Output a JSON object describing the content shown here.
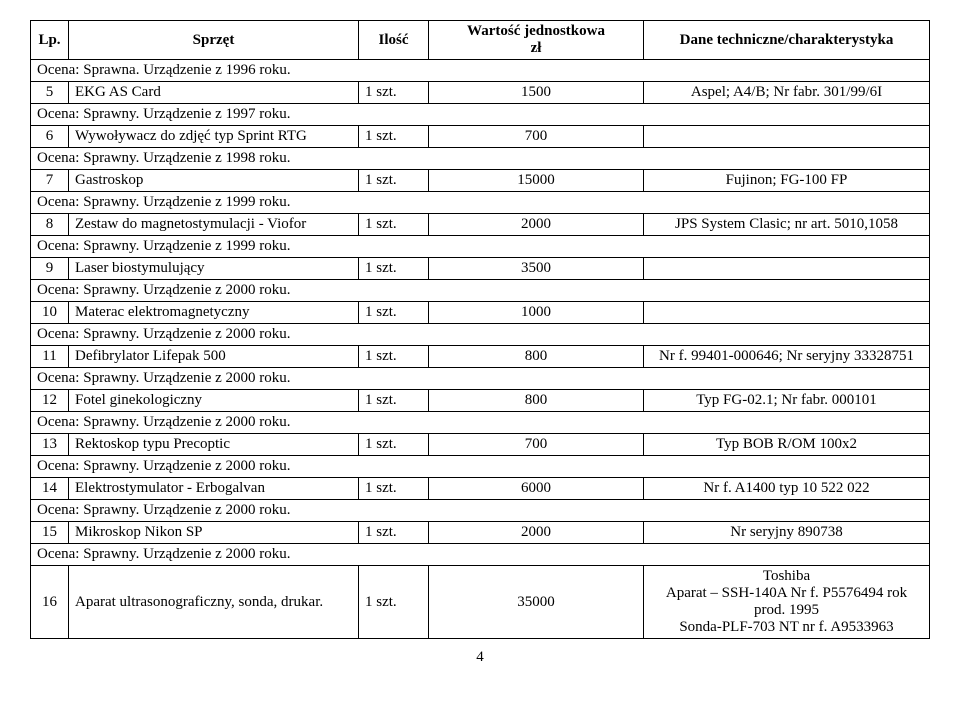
{
  "header": {
    "lp": "Lp.",
    "sprzet": "Sprzęt",
    "ilosc": "Ilość",
    "wartosc_l1": "Wartość jednostkowa",
    "wartosc_l2": "zł",
    "dane": "Dane techniczne/charakterystyka"
  },
  "rows": [
    {
      "type": "ocena",
      "text": "Ocena: Sprawna. Urządzenie z 1996 roku."
    },
    {
      "type": "item",
      "lp": "5",
      "sprzet": "EKG AS Card",
      "ilosc": "1 szt.",
      "wartosc": "1500",
      "dane": "Aspel; A4/B; Nr fabr. 301/99/6I"
    },
    {
      "type": "ocena",
      "text": "Ocena: Sprawny. Urządzenie z 1997 roku."
    },
    {
      "type": "item",
      "lp": "6",
      "sprzet": "Wywoływacz do zdjęć typ Sprint RTG",
      "ilosc": "1 szt.",
      "wartosc": "700",
      "dane": ""
    },
    {
      "type": "ocena",
      "text": "Ocena: Sprawny. Urządzenie z 1998 roku."
    },
    {
      "type": "item",
      "lp": "7",
      "sprzet": "Gastroskop",
      "ilosc": "1 szt.",
      "wartosc": "15000",
      "dane": "Fujinon; FG-100 FP"
    },
    {
      "type": "ocena",
      "text": "Ocena: Sprawny. Urządzenie z 1999 roku."
    },
    {
      "type": "item",
      "lp": "8",
      "sprzet": "Zestaw do magnetostymulacji - Viofor",
      "ilosc": "1 szt.",
      "wartosc": "2000",
      "dane": "JPS System Clasic; nr art. 5010,1058"
    },
    {
      "type": "ocena",
      "text": "Ocena: Sprawny. Urządzenie z 1999 roku."
    },
    {
      "type": "item",
      "lp": "9",
      "sprzet": "Laser biostymulujący",
      "ilosc": "1 szt.",
      "wartosc": "3500",
      "dane": ""
    },
    {
      "type": "ocena",
      "text": "Ocena: Sprawny. Urządzenie z 2000 roku."
    },
    {
      "type": "item",
      "lp": "10",
      "sprzet": "Materac elektromagnetyczny",
      "ilosc": "1 szt.",
      "wartosc": "1000",
      "dane": ""
    },
    {
      "type": "ocena",
      "text": "Ocena: Sprawny. Urządzenie z 2000 roku."
    },
    {
      "type": "item",
      "lp": "11",
      "sprzet": "Defibrylator Lifepak 500",
      "ilosc": "1 szt.",
      "wartosc": "800",
      "dane": "Nr f. 99401-000646; Nr seryjny 33328751"
    },
    {
      "type": "ocena",
      "text": "Ocena: Sprawny. Urządzenie z 2000 roku."
    },
    {
      "type": "item",
      "lp": "12",
      "sprzet": "Fotel ginekologiczny",
      "ilosc": "1 szt.",
      "wartosc": "800",
      "dane": "Typ FG-02.1; Nr fabr. 000101"
    },
    {
      "type": "ocena",
      "text": "Ocena: Sprawny. Urządzenie z 2000 roku."
    },
    {
      "type": "item",
      "lp": "13",
      "sprzet": "Rektoskop typu Precoptic",
      "ilosc": "1 szt.",
      "wartosc": "700",
      "dane": "Typ BOB R/OM 100x2"
    },
    {
      "type": "ocena",
      "text": "Ocena: Sprawny. Urządzenie z 2000 roku."
    },
    {
      "type": "item",
      "lp": "14",
      "sprzet": "Elektrostymulator - Erbogalvan",
      "ilosc": "1 szt.",
      "wartosc": "6000",
      "dane": "Nr f. A1400 typ 10 522 022"
    },
    {
      "type": "ocena",
      "text": "Ocena: Sprawny. Urządzenie z 2000 roku."
    },
    {
      "type": "item",
      "lp": "15",
      "sprzet": "Mikroskop Nikon SP",
      "ilosc": "1 szt.",
      "wartosc": "2000",
      "dane": "Nr seryjny 890738"
    },
    {
      "type": "ocena",
      "text": "Ocena: Sprawny. Urządzenie z 2000 roku."
    },
    {
      "type": "item",
      "lp": "16",
      "sprzet": "Aparat ultrasonograficzny, sonda, drukar.",
      "ilosc": "1 szt.",
      "wartosc": "35000",
      "dane": "Toshiba\nAparat – SSH-140A Nr f. P5576494 rok prod. 1995\nSonda-PLF-703 NT nr f. A9533963"
    }
  ],
  "page_number": "4"
}
